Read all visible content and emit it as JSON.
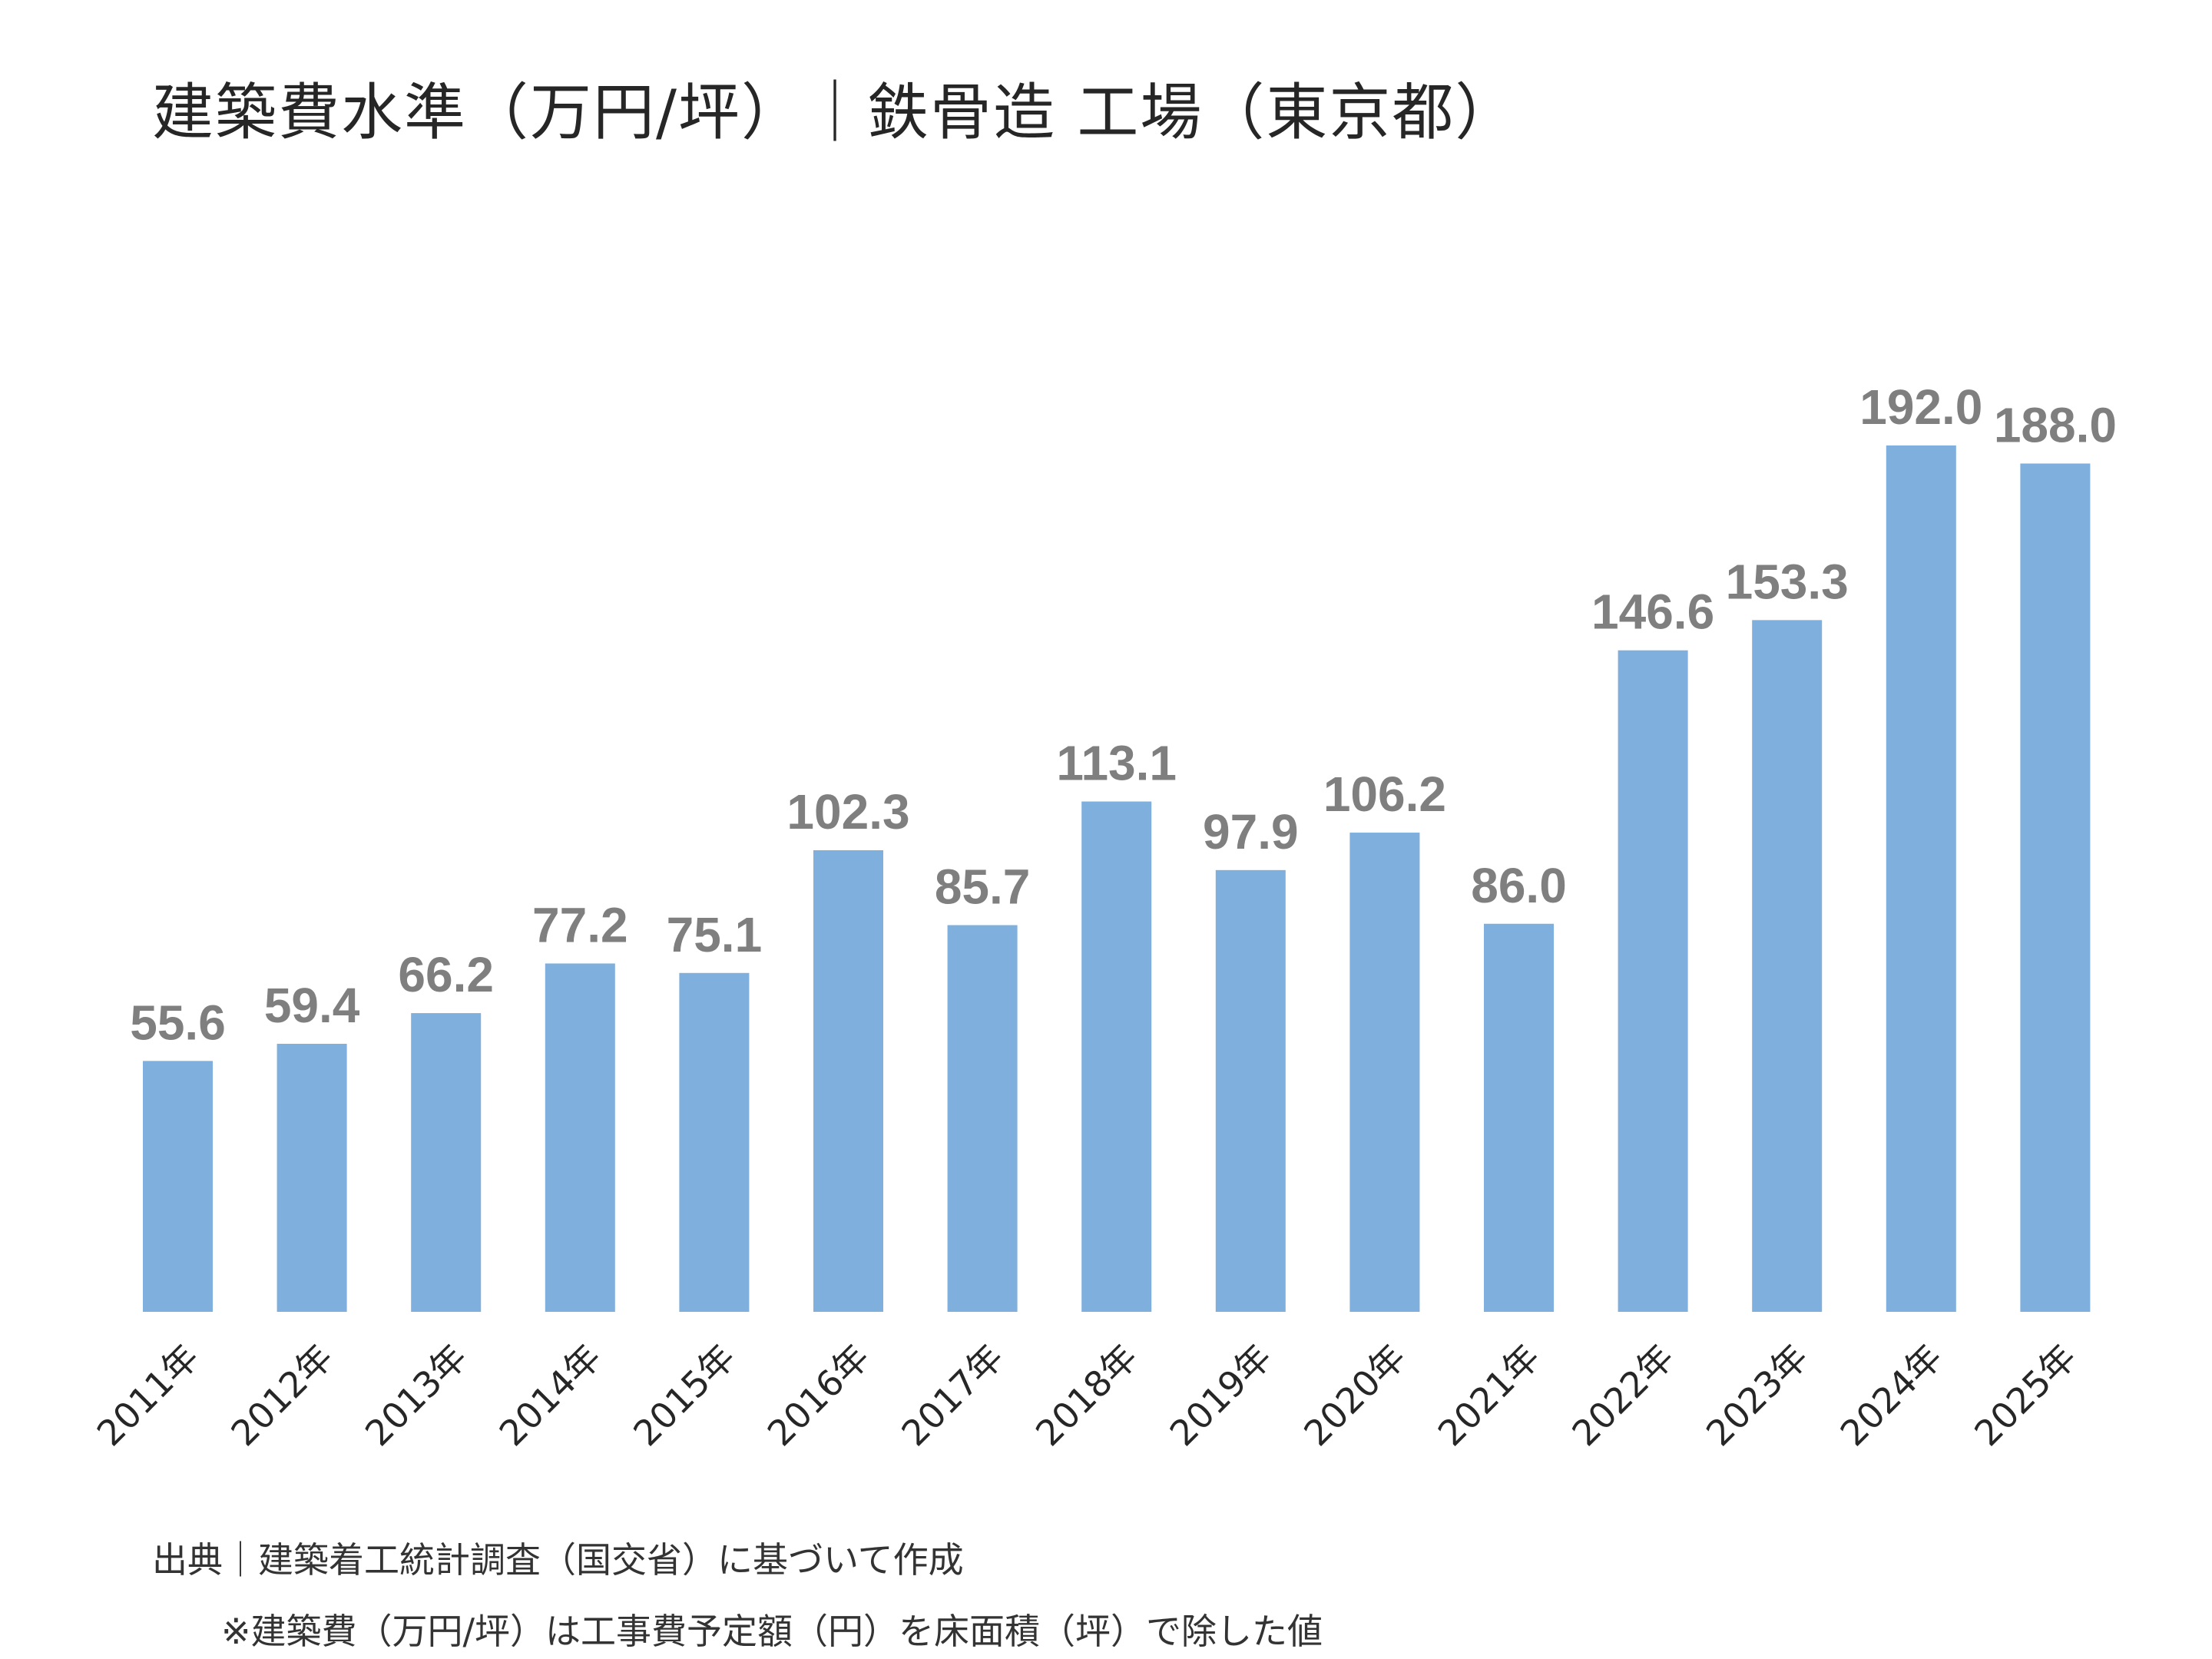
{
  "chart_data": {
    "type": "bar",
    "title": "建築費水準（万円/坪）｜鉄骨造 工場（東京都）",
    "categories": [
      "2011年",
      "2012年",
      "2013年",
      "2014年",
      "2015年",
      "2016年",
      "2017年",
      "2018年",
      "2019年",
      "2020年",
      "2021年",
      "2022年",
      "2023年",
      "2024年",
      "2025年"
    ],
    "values": [
      55.6,
      59.4,
      66.2,
      77.2,
      75.1,
      102.3,
      85.7,
      113.1,
      97.9,
      106.2,
      86.0,
      146.6,
      153.3,
      192.0,
      188.0
    ],
    "value_labels": [
      "55.6",
      "59.4",
      "66.2",
      "77.2",
      "75.1",
      "102.3",
      "85.7",
      "113.1",
      "97.9",
      "106.2",
      "86.0",
      "146.6",
      "153.3",
      "192.0",
      "188.0"
    ],
    "xlabel": "",
    "ylabel": "",
    "ylim": [
      0,
      192
    ],
    "grid": false,
    "y_axis_shown": false,
    "bar_color": "#7eafdd",
    "label_color": "#7f7f7f"
  },
  "footnotes": {
    "source": "出典｜建築着工統計調査（国交省）に基づいて作成",
    "note": "※建築費（万円/坪）は工事費予定額（円）を床面積（坪）で除した値"
  }
}
